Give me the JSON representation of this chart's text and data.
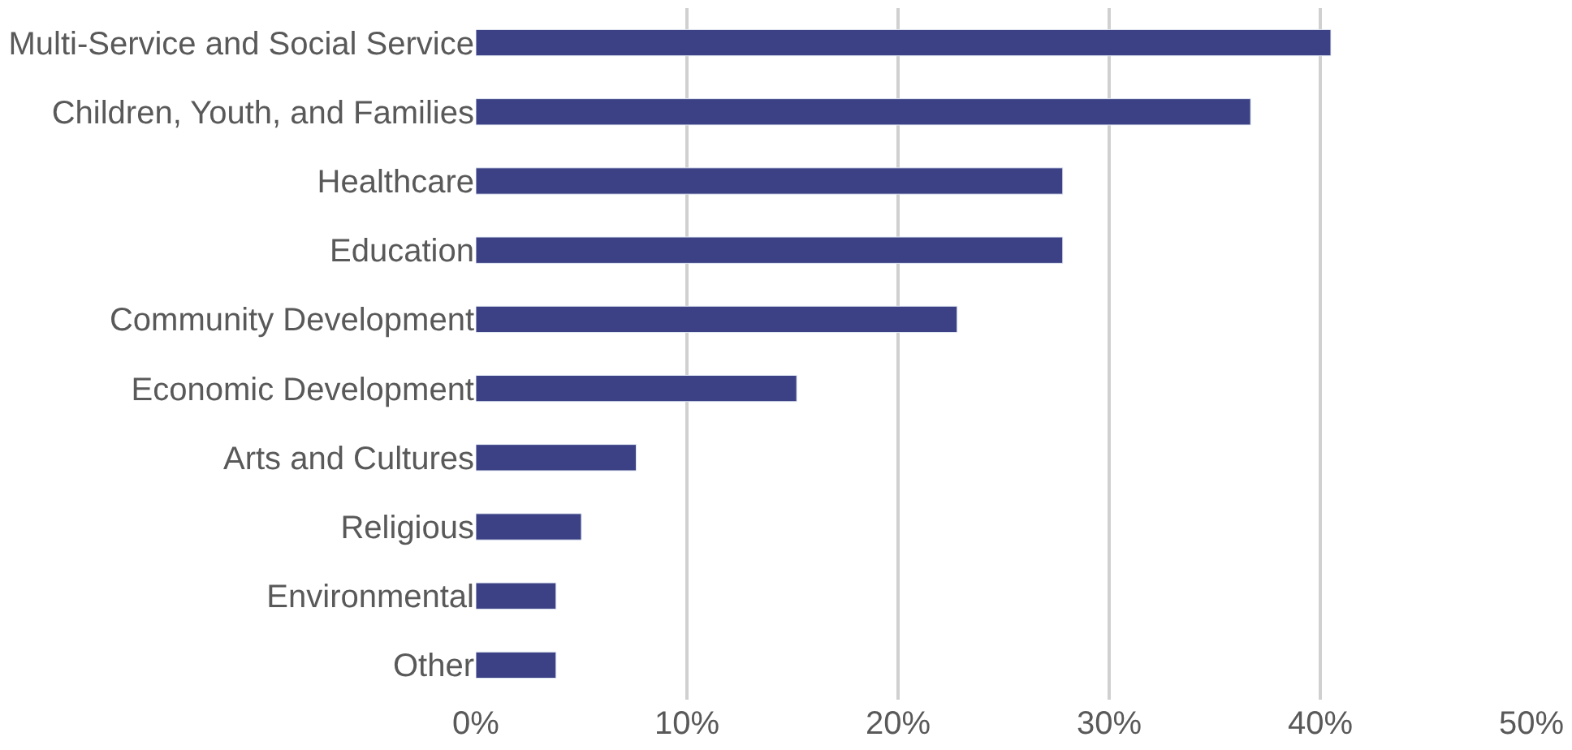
{
  "chart_data": {
    "type": "bar",
    "orientation": "horizontal",
    "categories": [
      "Multi-Service and Social Service",
      "Children, Youth, and Families",
      "Healthcare",
      "Education",
      "Community Development",
      "Economic Development",
      "Arts and Cultures",
      "Religious",
      "Environmental",
      "Other"
    ],
    "values": [
      40.5,
      36.7,
      27.8,
      27.8,
      22.8,
      15.2,
      7.6,
      5.0,
      3.8,
      3.8
    ],
    "color": "#3c4185",
    "xlim": [
      0,
      50
    ],
    "xticks": [
      {
        "value": 0,
        "label": "0%"
      },
      {
        "value": 10,
        "label": "10%"
      },
      {
        "value": 20,
        "label": "20%"
      },
      {
        "value": 30,
        "label": "30%"
      },
      {
        "value": 40,
        "label": "40%"
      },
      {
        "value": 50,
        "label": "50%"
      }
    ],
    "grid": "x"
  }
}
